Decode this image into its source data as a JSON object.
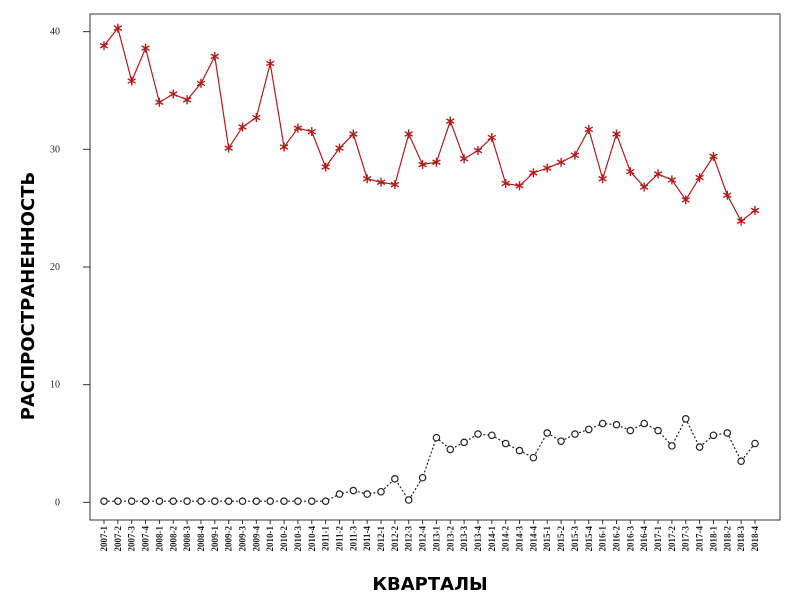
{
  "chart_data": {
    "type": "line",
    "x_label": "КВАРТАЛЫ",
    "y_label": "РАСПРОСТРАНЕННОСТЬ",
    "categories": [
      "2007-1",
      "2007-2",
      "2007-3",
      "2007-4",
      "2008-1",
      "2008-2",
      "2008-3",
      "2008-4",
      "2009-1",
      "2009-2",
      "2009-3",
      "2009-4",
      "2010-1",
      "2010-2",
      "2010-3",
      "2010-4",
      "2011-1",
      "2011-2",
      "2011-3",
      "2011-4",
      "2012-1",
      "2012-2",
      "2012-3",
      "2012-4",
      "2013-1",
      "2013-2",
      "2013-3",
      "2013-4",
      "2014-1",
      "2014-2",
      "2014-3",
      "2014-4",
      "2015-1",
      "2015-2",
      "2015-3",
      "2015-4",
      "2016-1",
      "2016-2",
      "2016-3",
      "2016-4",
      "2017-1",
      "2017-2",
      "2017-3",
      "2017-4",
      "2018-1",
      "2018-2",
      "2018-3",
      "2018-4"
    ],
    "series": [
      {
        "color": "#b01c1c",
        "marker": "asterisk",
        "line": "solid",
        "values": [
          38.8,
          40.3,
          35.8,
          38.6,
          34.0,
          34.7,
          34.2,
          35.6,
          37.9,
          30.1,
          31.9,
          32.7,
          37.3,
          30.2,
          31.8,
          31.5,
          28.5,
          30.1,
          31.3,
          27.5,
          27.2,
          27.0,
          31.3,
          28.7,
          28.9,
          32.4,
          29.2,
          29.9,
          31.0,
          27.1,
          26.9,
          28.0,
          28.4,
          28.9,
          29.5,
          31.7,
          27.5,
          31.3,
          28.1,
          26.8,
          27.9,
          27.4,
          25.7,
          27.6,
          29.4,
          26.1,
          23.9,
          24.8
        ]
      },
      {
        "color": "#222222",
        "marker": "circle",
        "line": "dotted",
        "values": [
          0.1,
          0.1,
          0.1,
          0.1,
          0.1,
          0.1,
          0.1,
          0.1,
          0.1,
          0.1,
          0.1,
          0.1,
          0.1,
          0.1,
          0.1,
          0.1,
          0.1,
          0.7,
          1.0,
          0.7,
          0.9,
          2.0,
          0.2,
          2.1,
          5.5,
          4.5,
          5.1,
          5.8,
          5.7,
          5.0,
          4.4,
          3.8,
          5.9,
          5.2,
          5.8,
          6.2,
          6.7,
          6.6,
          6.1,
          6.7,
          6.1,
          4.8,
          7.1,
          4.7,
          5.7,
          5.9,
          3.5,
          5.0
        ]
      }
    ],
    "ylim": [
      -1.5,
      41.5
    ],
    "yticks": [
      0,
      10,
      20,
      30,
      40
    ],
    "grid": false
  }
}
